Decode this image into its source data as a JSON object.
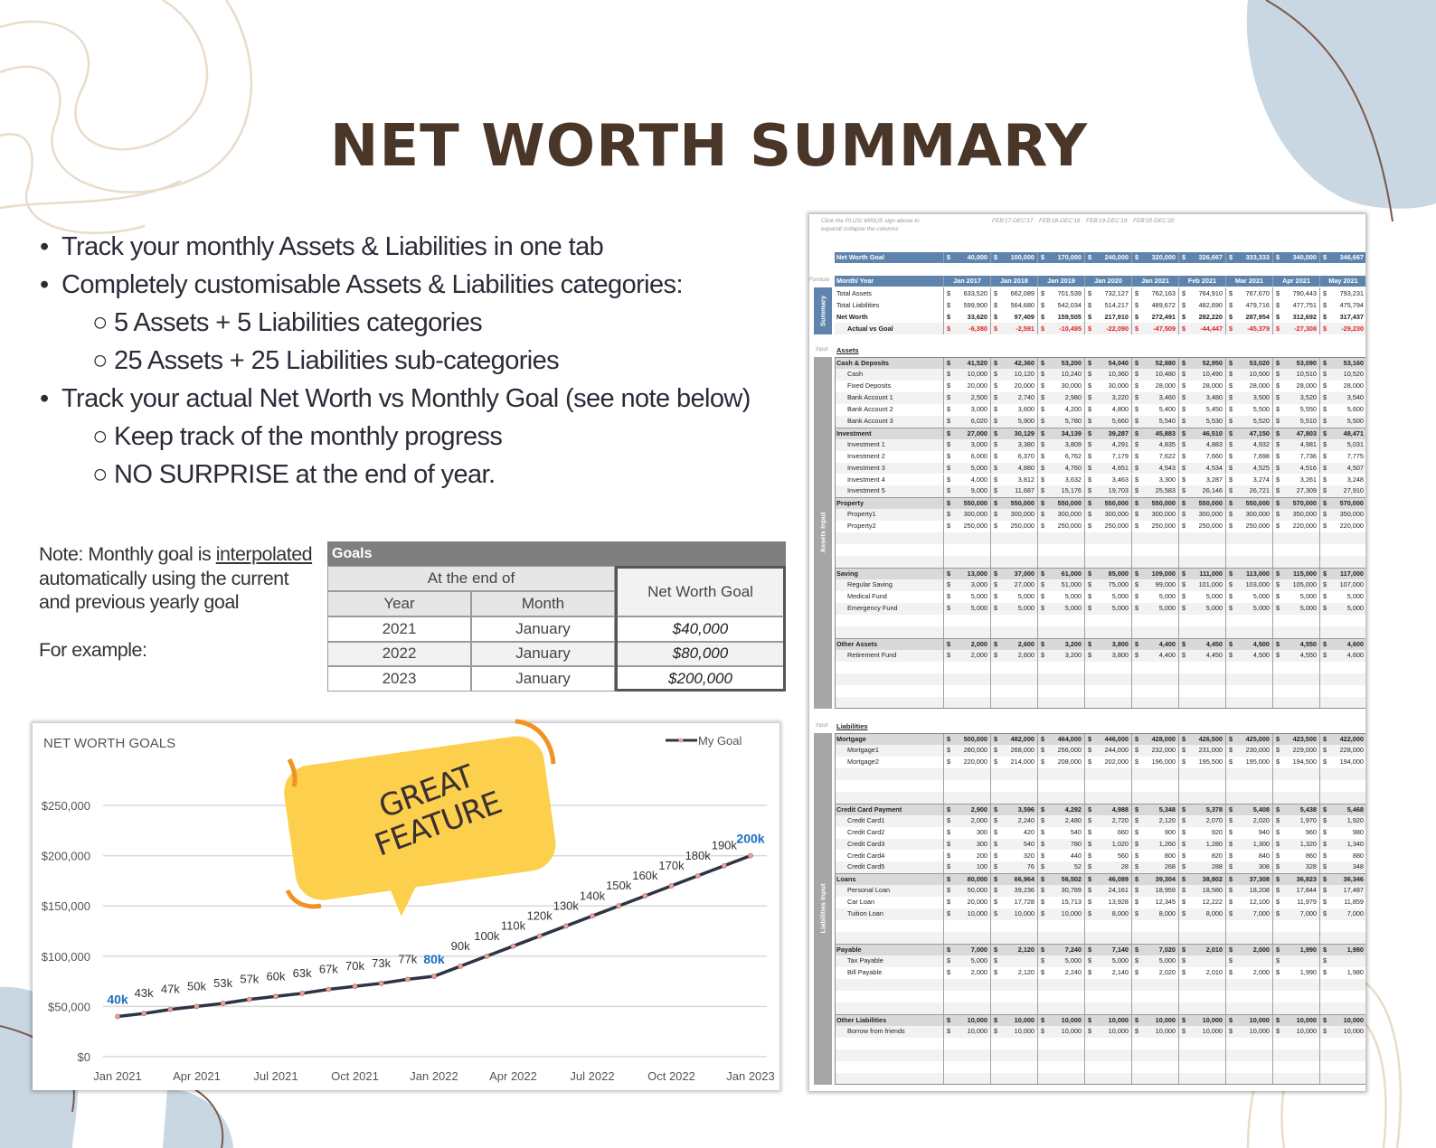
{
  "title": "NET WORTH SUMMARY",
  "bullets": [
    {
      "level": 1,
      "text": "Track your monthly Assets & Liabilities in one tab"
    },
    {
      "level": 1,
      "text": "Completely customisable Assets & Liabilities categories:"
    },
    {
      "level": 2,
      "text": "5 Assets + 5 Liabilities categories"
    },
    {
      "level": 2,
      "text": "25 Assets + 25 Liabilities sub-categories"
    },
    {
      "level": 1,
      "text": "Track your actual Net Worth vs Monthly Goal (see note below)"
    },
    {
      "level": 2,
      "text": "Keep track of the monthly progress"
    },
    {
      "level": 2,
      "text": "NO SURPRISE at the end of year."
    }
  ],
  "note": {
    "prefix": "Note: Monthly goal is ",
    "link": "interpolated",
    "rest": "automatically using the current and previous yearly goal",
    "example": "For example:"
  },
  "goals_table": {
    "title": "Goals",
    "group_header": "At the end of",
    "col_year": "Year",
    "col_month": "Month",
    "col_goal": "Net Worth Goal",
    "rows": [
      {
        "year": "2021",
        "month": "January",
        "goal": "$40,000"
      },
      {
        "year": "2022",
        "month": "January",
        "goal": "$80,000"
      },
      {
        "year": "2023",
        "month": "January",
        "goal": "$200,000"
      }
    ]
  },
  "callout": {
    "line1": "GREAT",
    "line2": "FEATURE",
    "color": "#fccf4d"
  },
  "chart_data": {
    "type": "line",
    "title": "NET WORTH GOALS",
    "legend": [
      "My Goal"
    ],
    "legend_position": "top-right",
    "ylim": [
      0,
      250000
    ],
    "yticks": [
      "$0",
      "$50,000",
      "$100,000",
      "$150,000",
      "$200,000",
      "$250,000"
    ],
    "xticks": [
      "Jan 2021",
      "Apr 2021",
      "Jul 2021",
      "Oct 2021",
      "Jan 2022",
      "Apr 2022",
      "Jul 2022",
      "Oct 2022",
      "Jan 2023"
    ],
    "series": [
      {
        "name": "My Goal",
        "values": [
          40000,
          43000,
          47000,
          50000,
          53000,
          57000,
          60000,
          63000,
          67000,
          70000,
          73000,
          77000,
          80000,
          90000,
          100000,
          110000,
          120000,
          130000,
          140000,
          150000,
          160000,
          170000,
          180000,
          190000,
          200000
        ]
      }
    ],
    "data_labels": [
      "40k",
      "43k",
      "47k",
      "50k",
      "53k",
      "57k",
      "60k",
      "63k",
      "67k",
      "70k",
      "73k",
      "77k",
      "80k",
      "90k",
      "100k",
      "110k",
      "120k",
      "130k",
      "140k",
      "150k",
      "160k",
      "170k",
      "180k",
      "190k",
      "200k"
    ],
    "highlight_labels": [
      0,
      12,
      24
    ],
    "line_color": "#2d3445",
    "marker_color": "#e8a0a0",
    "highlight_color": "#1a6fc2"
  },
  "sheet": {
    "hint": "Click the PLUS/ MINUS sign above to expand/ collapse the columns",
    "ranges": [
      "FEB'17-DEC'17",
      "FEB'18-DEC'18",
      "FEB'19-DEC'19",
      "FEB'20-DEC'20"
    ],
    "goal_label": "Net Worth Goal",
    "goal_values": [
      "40,000",
      "100,000",
      "170,000",
      "240,000",
      "320,000",
      "326,667",
      "333,333",
      "340,000",
      "346,667"
    ],
    "formula_label": "Formula",
    "header_label": "Month/ Year",
    "months": [
      "Jan 2017",
      "Jan 2018",
      "Jan 2019",
      "Jan 2020",
      "Jan 2021",
      "Feb 2021",
      "Mar 2021",
      "Apr 2021",
      "May 2021"
    ],
    "summary_side": "Summary",
    "summary": [
      {
        "name": "Total Assets",
        "values": [
          "633,520",
          "662,089",
          "701,539",
          "732,127",
          "762,163",
          "764,910",
          "767,670",
          "790,443",
          "793,231"
        ]
      },
      {
        "name": "Total Liabilities",
        "values": [
          "599,900",
          "564,680",
          "542,034",
          "514,217",
          "489,672",
          "482,690",
          "479,716",
          "477,751",
          "475,794"
        ]
      },
      {
        "name": "Net Worth",
        "bold": true,
        "values": [
          "33,620",
          "97,409",
          "159,505",
          "217,910",
          "272,491",
          "282,220",
          "287,954",
          "312,692",
          "317,437"
        ]
      },
      {
        "name": "Actual vs Goal",
        "values": [
          "-6,380",
          "-2,591",
          "-10,495",
          "-22,090",
          "-47,509",
          "-44,447",
          "-45,379",
          "-27,308",
          "-29,230"
        ]
      }
    ],
    "input_label": "Input",
    "assets": {
      "label": "Assets",
      "side": "Assets Input",
      "groups": [
        {
          "name": "Cash & Deposits",
          "values": [
            "41,520",
            "42,360",
            "53,200",
            "54,040",
            "52,880",
            "52,950",
            "53,020",
            "53,090",
            "53,160"
          ],
          "blank": 0,
          "items": [
            {
              "name": "Cash",
              "values": [
                "10,000",
                "10,120",
                "10,240",
                "10,360",
                "10,480",
                "10,490",
                "10,500",
                "10,510",
                "10,520"
              ]
            },
            {
              "name": "Fixed Deposits",
              "values": [
                "20,000",
                "20,000",
                "30,000",
                "30,000",
                "28,000",
                "28,000",
                "28,000",
                "28,000",
                "28,000"
              ]
            },
            {
              "name": "Bank  Account 1",
              "values": [
                "2,500",
                "2,740",
                "2,980",
                "3,220",
                "3,460",
                "3,480",
                "3,500",
                "3,520",
                "3,540"
              ]
            },
            {
              "name": "Bank Account 2",
              "values": [
                "3,000",
                "3,600",
                "4,200",
                "4,800",
                "5,400",
                "5,450",
                "5,500",
                "5,550",
                "5,600"
              ]
            },
            {
              "name": "Bank Account 3",
              "values": [
                "6,020",
                "5,900",
                "5,780",
                "5,660",
                "5,540",
                "5,530",
                "5,520",
                "5,510",
                "5,500"
              ]
            }
          ]
        },
        {
          "name": "Investment",
          "values": [
            "27,000",
            "30,129",
            "34,139",
            "39,287",
            "45,883",
            "46,510",
            "47,150",
            "47,803",
            "48,471"
          ],
          "blank": 0,
          "items": [
            {
              "name": "Investment 1",
              "values": [
                "3,000",
                "3,380",
                "3,809",
                "4,291",
                "4,835",
                "4,883",
                "4,932",
                "4,981",
                "5,031"
              ]
            },
            {
              "name": "Investment 2",
              "values": [
                "6,000",
                "6,370",
                "6,762",
                "7,179",
                "7,622",
                "7,660",
                "7,698",
                "7,736",
                "7,775"
              ]
            },
            {
              "name": "Investment 3",
              "values": [
                "5,000",
                "4,880",
                "4,760",
                "4,651",
                "4,543",
                "4,534",
                "4,525",
                "4,516",
                "4,507"
              ]
            },
            {
              "name": "Investment 4",
              "values": [
                "4,000",
                "3,812",
                "3,632",
                "3,463",
                "3,300",
                "3,287",
                "3,274",
                "3,261",
                "3,248"
              ]
            },
            {
              "name": "Investment 5",
              "values": [
                "9,000",
                "11,687",
                "15,176",
                "19,703",
                "25,583",
                "26,146",
                "26,721",
                "27,309",
                "27,910"
              ]
            }
          ]
        },
        {
          "name": "Property",
          "values": [
            "550,000",
            "550,000",
            "550,000",
            "550,000",
            "550,000",
            "550,000",
            "550,000",
            "570,000",
            "570,000"
          ],
          "blank": 3,
          "items": [
            {
              "name": "Property1",
              "values": [
                "300,000",
                "300,000",
                "300,000",
                "300,000",
                "300,000",
                "300,000",
                "300,000",
                "350,000",
                "350,000"
              ]
            },
            {
              "name": "Property2",
              "values": [
                "250,000",
                "250,000",
                "250,000",
                "250,000",
                "250,000",
                "250,000",
                "250,000",
                "220,000",
                "220,000"
              ]
            }
          ]
        },
        {
          "name": "Saving",
          "values": [
            "13,000",
            "37,000",
            "61,000",
            "85,000",
            "109,000",
            "111,000",
            "113,000",
            "115,000",
            "117,000"
          ],
          "blank": 2,
          "items": [
            {
              "name": "Regular Saving",
              "values": [
                "3,000",
                "27,000",
                "51,000",
                "75,000",
                "99,000",
                "101,000",
                "103,000",
                "105,000",
                "107,000"
              ]
            },
            {
              "name": "Medical Fund",
              "values": [
                "5,000",
                "5,000",
                "5,000",
                "5,000",
                "5,000",
                "5,000",
                "5,000",
                "5,000",
                "5,000"
              ]
            },
            {
              "name": "Emergency Fund",
              "values": [
                "5,000",
                "5,000",
                "5,000",
                "5,000",
                "5,000",
                "5,000",
                "5,000",
                "5,000",
                "5,000"
              ]
            }
          ]
        },
        {
          "name": "Other Assets",
          "values": [
            "2,000",
            "2,600",
            "3,200",
            "3,800",
            "4,400",
            "4,450",
            "4,500",
            "4,550",
            "4,600"
          ],
          "blank": 4,
          "items": [
            {
              "name": "Retirement Fund",
              "values": [
                "2,000",
                "2,600",
                "3,200",
                "3,800",
                "4,400",
                "4,450",
                "4,500",
                "4,550",
                "4,600"
              ]
            }
          ]
        }
      ]
    },
    "liabilities": {
      "label": "Liabilities",
      "side": "Liabilities Input",
      "groups": [
        {
          "name": "Mortgage",
          "values": [
            "500,000",
            "482,000",
            "464,000",
            "446,000",
            "428,000",
            "426,500",
            "425,000",
            "423,500",
            "422,000"
          ],
          "blank": 3,
          "items": [
            {
              "name": "Mortgage1",
              "values": [
                "280,000",
                "268,000",
                "256,000",
                "244,000",
                "232,000",
                "231,000",
                "230,000",
                "229,000",
                "228,000"
              ]
            },
            {
              "name": "Mortgage2",
              "values": [
                "220,000",
                "214,000",
                "208,000",
                "202,000",
                "196,000",
                "195,500",
                "195,000",
                "194,500",
                "194,000"
              ]
            }
          ]
        },
        {
          "name": "Credit Card Payment",
          "values": [
            "2,900",
            "3,596",
            "4,292",
            "4,988",
            "5,348",
            "5,378",
            "5,408",
            "5,438",
            "5,468"
          ],
          "blank": 0,
          "items": [
            {
              "name": "Credit Card1",
              "values": [
                "2,000",
                "2,240",
                "2,480",
                "2,720",
                "2,120",
                "2,070",
                "2,020",
                "1,970",
                "1,920"
              ]
            },
            {
              "name": "Credit Card2",
              "values": [
                "300",
                "420",
                "540",
                "660",
                "900",
                "920",
                "940",
                "960",
                "980"
              ]
            },
            {
              "name": "Credit Card3",
              "values": [
                "300",
                "540",
                "780",
                "1,020",
                "1,260",
                "1,280",
                "1,300",
                "1,320",
                "1,340"
              ]
            },
            {
              "name": "Credit Card4",
              "values": [
                "200",
                "320",
                "440",
                "560",
                "800",
                "820",
                "840",
                "860",
                "880"
              ]
            },
            {
              "name": "Credit Card5",
              "values": [
                "100",
                "76",
                "52",
                "28",
                "268",
                "288",
                "308",
                "328",
                "348"
              ]
            }
          ]
        },
        {
          "name": "Loans",
          "values": [
            "80,000",
            "66,964",
            "56,502",
            "46,089",
            "39,304",
            "38,802",
            "37,308",
            "36,823",
            "36,346"
          ],
          "blank": 2,
          "items": [
            {
              "name": "Personal Loan",
              "values": [
                "50,000",
                "39,236",
                "30,789",
                "24,161",
                "18,959",
                "18,580",
                "18,208",
                "17,844",
                "17,487"
              ]
            },
            {
              "name": "Car Loan",
              "values": [
                "20,000",
                "17,728",
                "15,713",
                "13,928",
                "12,345",
                "12,222",
                "12,100",
                "11,979",
                "11,859"
              ]
            },
            {
              "name": "Tuition Loan",
              "values": [
                "10,000",
                "10,000",
                "10,000",
                "8,000",
                "8,000",
                "8,000",
                "7,000",
                "7,000",
                "7,000"
              ]
            }
          ]
        },
        {
          "name": "Payable",
          "values": [
            "7,000",
            "2,120",
            "7,240",
            "7,140",
            "7,020",
            "2,010",
            "2,000",
            "1,990",
            "1,980"
          ],
          "blank": 3,
          "items": [
            {
              "name": "Tax Payable",
              "values": [
                "5,000",
                "",
                "5,000",
                "5,000",
                "5,000",
                "",
                "",
                "",
                ""
              ]
            },
            {
              "name": "Bill Payable",
              "values": [
                "2,000",
                "2,120",
                "2,240",
                "2,140",
                "2,020",
                "2,010",
                "2,000",
                "1,990",
                "1,980"
              ]
            }
          ]
        },
        {
          "name": "Other Liabilities",
          "values": [
            "10,000",
            "10,000",
            "10,000",
            "10,000",
            "10,000",
            "10,000",
            "10,000",
            "10,000",
            "10,000"
          ],
          "blank": 4,
          "items": [
            {
              "name": "Borrow from friends",
              "values": [
                "10,000",
                "10,000",
                "10,000",
                "10,000",
                "10,000",
                "10,000",
                "10,000",
                "10,000",
                "10,000"
              ]
            }
          ]
        }
      ]
    }
  }
}
